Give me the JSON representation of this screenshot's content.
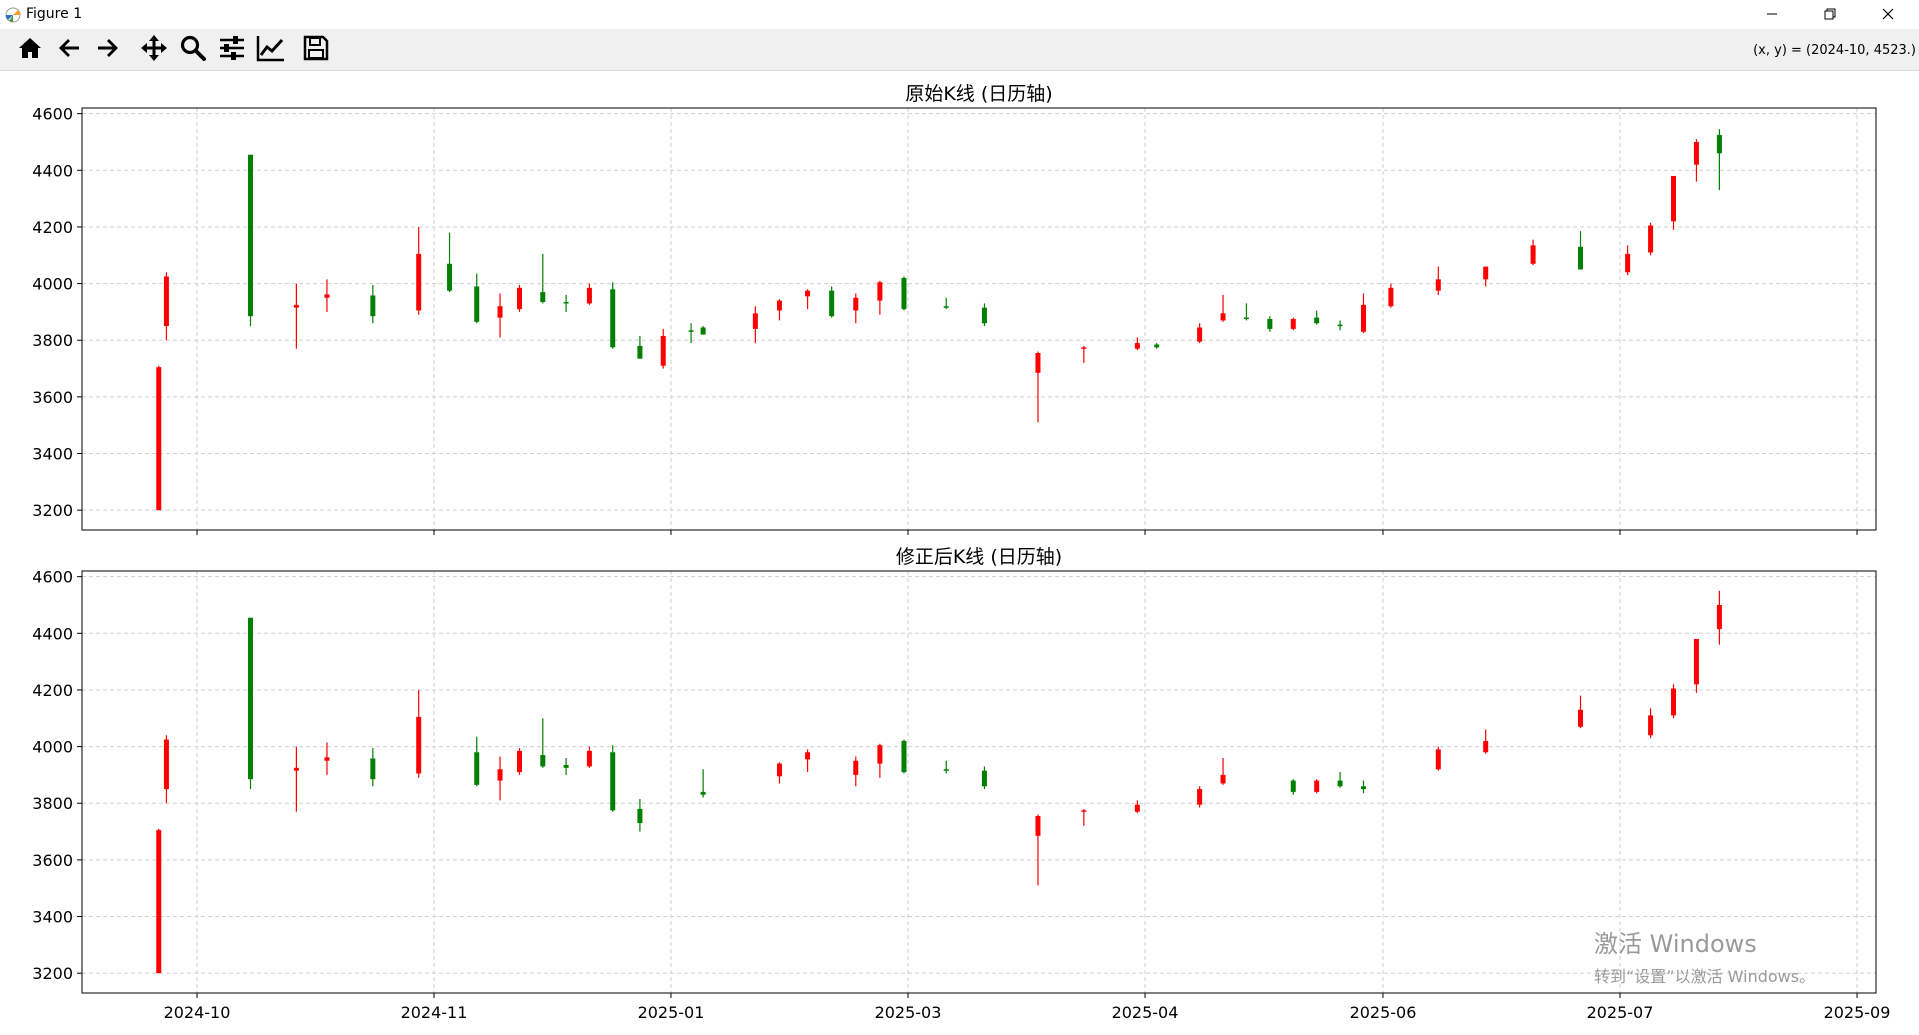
{
  "window": {
    "title": "Figure 1",
    "controls": {
      "minimize_icon": "minimize-icon",
      "maximize_icon": "restore-icon",
      "close_icon": "close-icon"
    }
  },
  "toolbar": {
    "buttons": [
      {
        "id": "home",
        "icon": "home-icon"
      },
      {
        "id": "back",
        "icon": "arrow-left-icon"
      },
      {
        "id": "forward",
        "icon": "arrow-right-icon"
      },
      {
        "id": "pan",
        "icon": "move-icon"
      },
      {
        "id": "zoom",
        "icon": "magnifier-icon"
      },
      {
        "id": "configure",
        "icon": "sliders-icon"
      },
      {
        "id": "edit",
        "icon": "line-chart-icon"
      },
      {
        "id": "save",
        "icon": "floppy-disk-icon"
      }
    ],
    "coordinates": "(x, y) = (2024-10, 4523.)"
  },
  "colors": {
    "up": "#ff0000",
    "down": "#008000",
    "grid": "#d0d0d0"
  },
  "watermark": {
    "line1": "激活 Windows",
    "line2": "转到“设置”以激活 Windows。"
  },
  "chart_data": [
    {
      "type": "candlestick",
      "title": "原始K线 (日历轴)",
      "ylim": [
        3130,
        4620
      ],
      "yticks": [
        3200,
        3400,
        3600,
        3800,
        4000,
        4200,
        4400,
        4600
      ],
      "xticks": [
        "2024-10",
        "2024-11",
        "2025-01",
        "2025-03",
        "2025-04",
        "2025-06",
        "2025-07",
        "2025-09"
      ],
      "grid": true,
      "candles": [
        {
          "d": "2024-09-26",
          "o": 3200,
          "h": 3710,
          "l": 3200,
          "c": 3705,
          "dir": "up"
        },
        {
          "d": "2024-09-27",
          "o": 3850,
          "h": 4040,
          "l": 3800,
          "c": 4025,
          "dir": "up"
        },
        {
          "d": "2024-10-08",
          "o": 4455,
          "h": 4455,
          "l": 3850,
          "c": 3885,
          "dir": "down"
        },
        {
          "d": "2024-10-14",
          "o": 3915,
          "h": 4000,
          "l": 3770,
          "c": 3925,
          "dir": "up"
        },
        {
          "d": "2024-10-18",
          "o": 3950,
          "h": 4015,
          "l": 3900,
          "c": 3962,
          "dir": "up"
        },
        {
          "d": "2024-10-24",
          "o": 3958,
          "h": 3995,
          "l": 3860,
          "c": 3885,
          "dir": "down"
        },
        {
          "d": "2024-10-30",
          "o": 3905,
          "h": 4200,
          "l": 3890,
          "c": 4105,
          "dir": "up"
        },
        {
          "d": "2024-11-05",
          "o": 4070,
          "h": 4180,
          "l": 3970,
          "c": 3975,
          "dir": "down"
        },
        {
          "d": "2024-11-12",
          "o": 3990,
          "h": 4035,
          "l": 3860,
          "c": 3865,
          "dir": "down"
        },
        {
          "d": "2024-11-18",
          "o": 3880,
          "h": 3965,
          "l": 3810,
          "c": 3920,
          "dir": "up"
        },
        {
          "d": "2024-11-23",
          "o": 3910,
          "h": 3995,
          "l": 3900,
          "c": 3985,
          "dir": "up"
        },
        {
          "d": "2024-11-29",
          "o": 3970,
          "h": 4105,
          "l": 3930,
          "c": 3935,
          "dir": "down"
        },
        {
          "d": "2024-12-05",
          "o": 3935,
          "h": 3960,
          "l": 3900,
          "c": 3930,
          "dir": "down"
        },
        {
          "d": "2024-12-11",
          "o": 3930,
          "h": 4000,
          "l": 3925,
          "c": 3985,
          "dir": "up"
        },
        {
          "d": "2024-12-17",
          "o": 3980,
          "h": 4005,
          "l": 3770,
          "c": 3775,
          "dir": "down"
        },
        {
          "d": "2024-12-24",
          "o": 3780,
          "h": 3815,
          "l": 3735,
          "c": 3735,
          "dir": "down"
        },
        {
          "d": "2024-12-30",
          "o": 3710,
          "h": 3840,
          "l": 3700,
          "c": 3815,
          "dir": "up"
        },
        {
          "d": "2025-01-06",
          "o": 3835,
          "h": 3860,
          "l": 3790,
          "c": 3830,
          "dir": "down"
        },
        {
          "d": "2025-01-09",
          "o": 3845,
          "h": 3850,
          "l": 3820,
          "c": 3820,
          "dir": "down"
        },
        {
          "d": "2025-01-22",
          "o": 3840,
          "h": 3920,
          "l": 3790,
          "c": 3895,
          "dir": "up"
        },
        {
          "d": "2025-01-28",
          "o": 3905,
          "h": 3945,
          "l": 3870,
          "c": 3940,
          "dir": "up"
        },
        {
          "d": "2025-02-04",
          "o": 3955,
          "h": 3980,
          "l": 3910,
          "c": 3975,
          "dir": "up"
        },
        {
          "d": "2025-02-10",
          "o": 3975,
          "h": 3990,
          "l": 3880,
          "c": 3885,
          "dir": "down"
        },
        {
          "d": "2025-02-16",
          "o": 3905,
          "h": 3965,
          "l": 3860,
          "c": 3950,
          "dir": "up"
        },
        {
          "d": "2025-02-22",
          "o": 3940,
          "h": 4010,
          "l": 3890,
          "c": 4005,
          "dir": "up"
        },
        {
          "d": "2025-02-28",
          "o": 4020,
          "h": 4025,
          "l": 3905,
          "c": 3910,
          "dir": "down"
        },
        {
          "d": "2025-03-06",
          "o": 3920,
          "h": 3950,
          "l": 3910,
          "c": 3915,
          "dir": "down"
        },
        {
          "d": "2025-03-11",
          "o": 3915,
          "h": 3930,
          "l": 3850,
          "c": 3860,
          "dir": "down"
        },
        {
          "d": "2025-03-18",
          "o": 3685,
          "h": 3760,
          "l": 3510,
          "c": 3755,
          "dir": "up"
        },
        {
          "d": "2025-03-24",
          "o": 3775,
          "h": 3780,
          "l": 3720,
          "c": 3775,
          "dir": "up"
        },
        {
          "d": "2025-03-31",
          "o": 3770,
          "h": 3810,
          "l": 3765,
          "c": 3790,
          "dir": "up"
        },
        {
          "d": "2025-04-04",
          "o": 3785,
          "h": 3790,
          "l": 3770,
          "c": 3775,
          "dir": "down"
        },
        {
          "d": "2025-04-15",
          "o": 3795,
          "h": 3860,
          "l": 3790,
          "c": 3845,
          "dir": "up"
        },
        {
          "d": "2025-04-21",
          "o": 3870,
          "h": 3960,
          "l": 3865,
          "c": 3895,
          "dir": "up"
        },
        {
          "d": "2025-04-27",
          "o": 3880,
          "h": 3930,
          "l": 3870,
          "c": 3875,
          "dir": "down"
        },
        {
          "d": "2025-05-03",
          "o": 3875,
          "h": 3885,
          "l": 3830,
          "c": 3840,
          "dir": "down"
        },
        {
          "d": "2025-05-09",
          "o": 3840,
          "h": 3880,
          "l": 3835,
          "c": 3875,
          "dir": "up"
        },
        {
          "d": "2025-05-15",
          "o": 3880,
          "h": 3905,
          "l": 3855,
          "c": 3860,
          "dir": "down"
        },
        {
          "d": "2025-05-21",
          "o": 3855,
          "h": 3870,
          "l": 3835,
          "c": 3850,
          "dir": "down"
        },
        {
          "d": "2025-05-27",
          "o": 3830,
          "h": 3965,
          "l": 3825,
          "c": 3925,
          "dir": "up"
        },
        {
          "d": "2025-06-02",
          "o": 3920,
          "h": 4000,
          "l": 3915,
          "c": 3985,
          "dir": "up"
        },
        {
          "d": "2025-06-08",
          "o": 3975,
          "h": 4060,
          "l": 3960,
          "c": 4015,
          "dir": "up"
        },
        {
          "d": "2025-06-14",
          "o": 4015,
          "h": 4060,
          "l": 3990,
          "c": 4060,
          "dir": "up"
        },
        {
          "d": "2025-06-20",
          "o": 4070,
          "h": 4155,
          "l": 4065,
          "c": 4135,
          "dir": "up"
        },
        {
          "d": "2025-06-26",
          "o": 4130,
          "h": 4185,
          "l": 4050,
          "c": 4050,
          "dir": "down"
        },
        {
          "d": "2025-07-03",
          "o": 4040,
          "h": 4135,
          "l": 4030,
          "c": 4105,
          "dir": "up"
        },
        {
          "d": "2025-07-09",
          "o": 4110,
          "h": 4215,
          "l": 4100,
          "c": 4205,
          "dir": "up"
        },
        {
          "d": "2025-07-15",
          "o": 4220,
          "h": 4380,
          "l": 4190,
          "c": 4380,
          "dir": "up"
        },
        {
          "d": "2025-07-21",
          "o": 4420,
          "h": 4510,
          "l": 4360,
          "c": 4500,
          "dir": "up"
        },
        {
          "d": "2025-07-27",
          "o": 4525,
          "h": 4545,
          "l": 4330,
          "c": 4460,
          "dir": "down"
        }
      ]
    },
    {
      "type": "candlestick",
      "title": "修正后K线 (日历轴)",
      "ylim": [
        3130,
        4620
      ],
      "yticks": [
        3200,
        3400,
        3600,
        3800,
        4000,
        4200,
        4400,
        4600
      ],
      "xticks": [
        "2024-10",
        "2024-11",
        "2025-01",
        "2025-03",
        "2025-04",
        "2025-06",
        "2025-07",
        "2025-09"
      ],
      "grid": true,
      "candles": [
        {
          "d": "2024-09-26",
          "o": 3200,
          "h": 3710,
          "l": 3200,
          "c": 3705,
          "dir": "up"
        },
        {
          "d": "2024-09-27",
          "o": 3850,
          "h": 4040,
          "l": 3800,
          "c": 4025,
          "dir": "up"
        },
        {
          "d": "2024-10-08",
          "o": 4455,
          "h": 4455,
          "l": 3850,
          "c": 3885,
          "dir": "down"
        },
        {
          "d": "2024-10-14",
          "o": 3915,
          "h": 4000,
          "l": 3770,
          "c": 3925,
          "dir": "up"
        },
        {
          "d": "2024-10-18",
          "o": 3950,
          "h": 4015,
          "l": 3900,
          "c": 3962,
          "dir": "up"
        },
        {
          "d": "2024-10-24",
          "o": 3958,
          "h": 3995,
          "l": 3860,
          "c": 3885,
          "dir": "down"
        },
        {
          "d": "2024-10-30",
          "o": 3905,
          "h": 4200,
          "l": 3890,
          "c": 4105,
          "dir": "up"
        },
        {
          "d": "2024-11-12",
          "o": 3980,
          "h": 4035,
          "l": 3860,
          "c": 3865,
          "dir": "down"
        },
        {
          "d": "2024-11-18",
          "o": 3880,
          "h": 3965,
          "l": 3810,
          "c": 3920,
          "dir": "up"
        },
        {
          "d": "2024-11-23",
          "o": 3910,
          "h": 3995,
          "l": 3900,
          "c": 3985,
          "dir": "up"
        },
        {
          "d": "2024-11-29",
          "o": 3970,
          "h": 4100,
          "l": 3925,
          "c": 3930,
          "dir": "down"
        },
        {
          "d": "2024-12-05",
          "o": 3935,
          "h": 3960,
          "l": 3900,
          "c": 3925,
          "dir": "down"
        },
        {
          "d": "2024-12-11",
          "o": 3930,
          "h": 4000,
          "l": 3925,
          "c": 3985,
          "dir": "up"
        },
        {
          "d": "2024-12-17",
          "o": 3980,
          "h": 4005,
          "l": 3770,
          "c": 3775,
          "dir": "down"
        },
        {
          "d": "2024-12-24",
          "o": 3780,
          "h": 3815,
          "l": 3700,
          "c": 3730,
          "dir": "down"
        },
        {
          "d": "2025-01-09",
          "o": 3840,
          "h": 3920,
          "l": 3820,
          "c": 3830,
          "dir": "down"
        },
        {
          "d": "2025-01-28",
          "o": 3895,
          "h": 3945,
          "l": 3870,
          "c": 3940,
          "dir": "up"
        },
        {
          "d": "2025-02-04",
          "o": 3955,
          "h": 3990,
          "l": 3910,
          "c": 3980,
          "dir": "up"
        },
        {
          "d": "2025-02-16",
          "o": 3900,
          "h": 3965,
          "l": 3860,
          "c": 3950,
          "dir": "up"
        },
        {
          "d": "2025-02-22",
          "o": 3940,
          "h": 4010,
          "l": 3890,
          "c": 4005,
          "dir": "up"
        },
        {
          "d": "2025-02-28",
          "o": 4020,
          "h": 4025,
          "l": 3905,
          "c": 3910,
          "dir": "down"
        },
        {
          "d": "2025-03-06",
          "o": 3920,
          "h": 3950,
          "l": 3905,
          "c": 3915,
          "dir": "down"
        },
        {
          "d": "2025-03-11",
          "o": 3915,
          "h": 3930,
          "l": 3850,
          "c": 3860,
          "dir": "down"
        },
        {
          "d": "2025-03-18",
          "o": 3685,
          "h": 3760,
          "l": 3510,
          "c": 3755,
          "dir": "up"
        },
        {
          "d": "2025-03-24",
          "o": 3775,
          "h": 3780,
          "l": 3720,
          "c": 3775,
          "dir": "up"
        },
        {
          "d": "2025-03-31",
          "o": 3770,
          "h": 3810,
          "l": 3765,
          "c": 3795,
          "dir": "up"
        },
        {
          "d": "2025-04-15",
          "o": 3795,
          "h": 3860,
          "l": 3785,
          "c": 3850,
          "dir": "up"
        },
        {
          "d": "2025-04-21",
          "o": 3870,
          "h": 3960,
          "l": 3865,
          "c": 3900,
          "dir": "up"
        },
        {
          "d": "2025-05-09",
          "o": 3880,
          "h": 3885,
          "l": 3830,
          "c": 3840,
          "dir": "down"
        },
        {
          "d": "2025-05-15",
          "o": 3840,
          "h": 3885,
          "l": 3835,
          "c": 3880,
          "dir": "up"
        },
        {
          "d": "2025-05-21",
          "o": 3880,
          "h": 3910,
          "l": 3855,
          "c": 3860,
          "dir": "down"
        },
        {
          "d": "2025-05-27",
          "o": 3860,
          "h": 3880,
          "l": 3835,
          "c": 3850,
          "dir": "down"
        },
        {
          "d": "2025-06-08",
          "o": 3920,
          "h": 4000,
          "l": 3915,
          "c": 3990,
          "dir": "up"
        },
        {
          "d": "2025-06-14",
          "o": 3980,
          "h": 4060,
          "l": 3975,
          "c": 4020,
          "dir": "up"
        },
        {
          "d": "2025-06-26",
          "o": 4070,
          "h": 4180,
          "l": 4065,
          "c": 4130,
          "dir": "up"
        },
        {
          "d": "2025-07-09",
          "o": 4040,
          "h": 4135,
          "l": 4030,
          "c": 4110,
          "dir": "up"
        },
        {
          "d": "2025-07-15",
          "o": 4110,
          "h": 4220,
          "l": 4100,
          "c": 4205,
          "dir": "up"
        },
        {
          "d": "2025-07-21",
          "o": 4220,
          "h": 4380,
          "l": 4190,
          "c": 4380,
          "dir": "up"
        },
        {
          "d": "2025-07-27",
          "o": 4415,
          "h": 4550,
          "l": 4360,
          "c": 4500,
          "dir": "up"
        }
      ]
    }
  ]
}
